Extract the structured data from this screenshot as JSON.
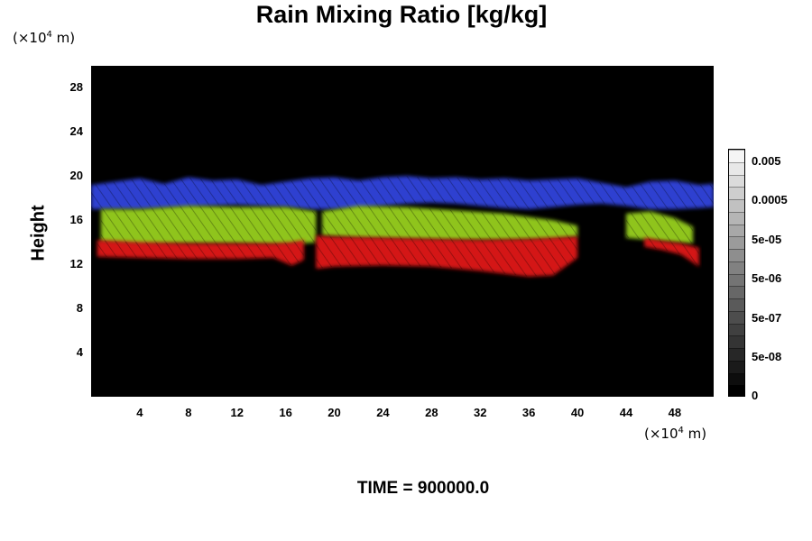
{
  "title": "Rain Mixing Ratio [kg/kg]",
  "y_unit": {
    "prefix": "(×10",
    "exp": "4",
    "suffix": " m)"
  },
  "x_unit": {
    "prefix": "(×10",
    "exp": "4",
    "suffix": " m)"
  },
  "ylabel": "Height",
  "time": {
    "label": "TIME =",
    "value": "900000.0"
  },
  "colorbar": {
    "labels": [
      "0.005",
      "0.0005",
      "5e-05",
      "5e-06",
      "5e-07",
      "5e-08",
      "0"
    ],
    "segments": 20
  },
  "chart_data": {
    "type": "heatmap",
    "title": "Rain Mixing Ratio [kg/kg]",
    "xlabel": "",
    "ylabel": "Height",
    "x_unit": "×10^4 m",
    "y_unit": "×10^4 m",
    "xlim": [
      0,
      51.2
    ],
    "ylim": [
      0,
      30
    ],
    "x_ticks": [
      4,
      8,
      12,
      16,
      20,
      24,
      28,
      32,
      36,
      40,
      44,
      48
    ],
    "y_ticks": [
      4,
      8,
      12,
      16,
      20,
      24,
      28
    ],
    "background": "#000000",
    "layer_colors": {
      "top": "#2e3fd0",
      "middle": "#8fc41a",
      "bottom": "#d41212"
    },
    "bands": [
      {
        "layer": "top",
        "color": "#2e3fd0",
        "x": [
          0,
          2,
          4,
          6,
          8,
          10,
          12,
          14,
          16,
          18,
          20,
          22,
          24,
          26,
          28,
          30,
          32,
          34,
          36,
          38,
          40,
          42,
          44,
          46,
          48,
          50,
          51.2
        ],
        "y_top": [
          19.2,
          19.5,
          19.8,
          19.3,
          19.9,
          19.6,
          19.7,
          19.2,
          19.5,
          19.8,
          19.9,
          19.6,
          19.9,
          20.0,
          19.8,
          19.9,
          19.7,
          19.8,
          19.6,
          19.7,
          19.8,
          19.4,
          19.0,
          19.5,
          19.6,
          19.2,
          19.3
        ],
        "y_bottom": [
          17.0,
          17.0,
          17.0,
          17.1,
          17.2,
          17.3,
          17.4,
          17.3,
          17.2,
          17.0,
          17.0,
          17.1,
          17.3,
          17.5,
          17.6,
          17.5,
          17.3,
          17.1,
          17.0,
          17.2,
          17.4,
          17.5,
          17.3,
          17.0,
          17.0,
          17.1,
          17.2
        ]
      },
      {
        "layer": "middle",
        "color": "#8fc41a",
        "segments": [
          {
            "x": [
              0.8,
              4,
              8,
              12,
              16,
              18.5
            ],
            "y_top": [
              17.0,
              17.0,
              17.3,
              17.2,
              17.2,
              16.8
            ],
            "y_bottom": [
              14.0,
              13.8,
              13.9,
              13.9,
              13.8,
              14.0
            ]
          },
          {
            "x": [
              19,
              22,
              26,
              30,
              34,
              38,
              40
            ],
            "y_top": [
              16.8,
              17.3,
              17.2,
              16.9,
              16.6,
              16.0,
              15.5
            ],
            "y_bottom": [
              14.6,
              14.4,
              14.3,
              14.2,
              14.2,
              14.3,
              14.5
            ]
          },
          {
            "x": [
              44,
              46,
              48,
              49.5
            ],
            "y_top": [
              16.6,
              16.8,
              16.2,
              15.4
            ],
            "y_bottom": [
              14.4,
              14.2,
              14.0,
              13.9
            ]
          }
        ]
      },
      {
        "layer": "bottom",
        "color": "#d41212",
        "segments": [
          {
            "x": [
              0.5,
              4,
              8,
              12,
              15,
              16.5,
              17.5
            ],
            "y_top": [
              14.2,
              14.0,
              13.9,
              13.9,
              13.9,
              14.0,
              14.2
            ],
            "y_bottom": [
              12.7,
              12.6,
              12.5,
              12.5,
              12.6,
              11.9,
              12.4
            ]
          },
          {
            "x": [
              18.5,
              20,
              24,
              28,
              32,
              36,
              38,
              40
            ],
            "y_top": [
              14.6,
              14.5,
              14.4,
              14.3,
              14.2,
              14.3,
              14.4,
              14.5
            ],
            "y_bottom": [
              11.6,
              11.8,
              11.9,
              11.8,
              11.4,
              10.9,
              11.0,
              12.6
            ]
          },
          {
            "x": [
              45.5,
              47,
              48.5,
              50
            ],
            "y_top": [
              14.4,
              14.1,
              13.9,
              13.5
            ],
            "y_bottom": [
              13.6,
              13.3,
              12.9,
              11.8
            ]
          }
        ]
      }
    ]
  }
}
